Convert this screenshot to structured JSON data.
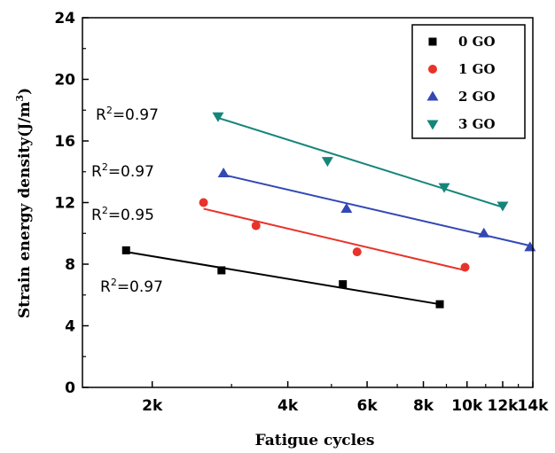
{
  "chart_data": {
    "type": "scatter",
    "xscale": "log",
    "xlabel": "Fatigue cycles",
    "ylabel": "Strain energy density(J/m",
    "ylabel_sup": "3",
    "ylabel_close": ")",
    "xlim": [
      1400,
      14000
    ],
    "ylim": [
      0,
      24
    ],
    "x_ticks": [
      {
        "value": 2000,
        "label": "2k"
      },
      {
        "value": 4000,
        "label": "4k"
      },
      {
        "value": 6000,
        "label": "6k"
      },
      {
        "value": 8000,
        "label": "8k"
      },
      {
        "value": 10000,
        "label": "10k"
      },
      {
        "value": 12000,
        "label": "12k"
      },
      {
        "value": 14000,
        "label": "14k"
      }
    ],
    "y_ticks": [
      {
        "value": 0,
        "label": "0"
      },
      {
        "value": 4,
        "label": "4"
      },
      {
        "value": 8,
        "label": "8"
      },
      {
        "value": 12,
        "label": "12"
      },
      {
        "value": 16,
        "label": "16"
      },
      {
        "value": 20,
        "label": "20"
      },
      {
        "value": 24,
        "label": "24"
      }
    ],
    "legend_position": "top-right",
    "series": [
      {
        "name": "0 GO",
        "color": "#000000",
        "marker": "square",
        "x": [
          1750,
          2850,
          5300,
          8700
        ],
        "y": [
          8.9,
          7.6,
          6.7,
          5.4
        ],
        "fit_x": [
          1750,
          8700
        ],
        "fit_y": [
          8.8,
          5.4
        ],
        "r2_label": "R",
        "r2_sup": "2",
        "r2_value": "=0.97"
      },
      {
        "name": "1 GO",
        "color": "#e8332a",
        "marker": "circle",
        "x": [
          2600,
          3400,
          5700,
          9900
        ],
        "y": [
          12.0,
          10.5,
          8.8,
          7.8
        ],
        "fit_x": [
          2600,
          9900
        ],
        "fit_y": [
          11.6,
          7.6
        ],
        "r2_label": "R",
        "r2_sup": "2",
        "r2_value": "=0.95"
      },
      {
        "name": "2 GO",
        "color": "#3347b5",
        "marker": "triangle-up",
        "x": [
          2880,
          5400,
          10900,
          13800
        ],
        "y": [
          13.9,
          11.6,
          10.0,
          9.1
        ],
        "fit_x": [
          2880,
          13800
        ],
        "fit_y": [
          13.8,
          9.2
        ],
        "r2_label": "R",
        "r2_sup": "2",
        "r2_value": "=0.97"
      },
      {
        "name": "3 GO",
        "color": "#15857a",
        "marker": "triangle-down",
        "x": [
          2800,
          4900,
          8900,
          12000
        ],
        "y": [
          17.6,
          14.7,
          13.0,
          11.8
        ],
        "fit_x": [
          2800,
          12000
        ],
        "fit_y": [
          17.5,
          11.7
        ],
        "r2_label": "R",
        "r2_sup": "2",
        "r2_value": "=0.97"
      }
    ]
  }
}
